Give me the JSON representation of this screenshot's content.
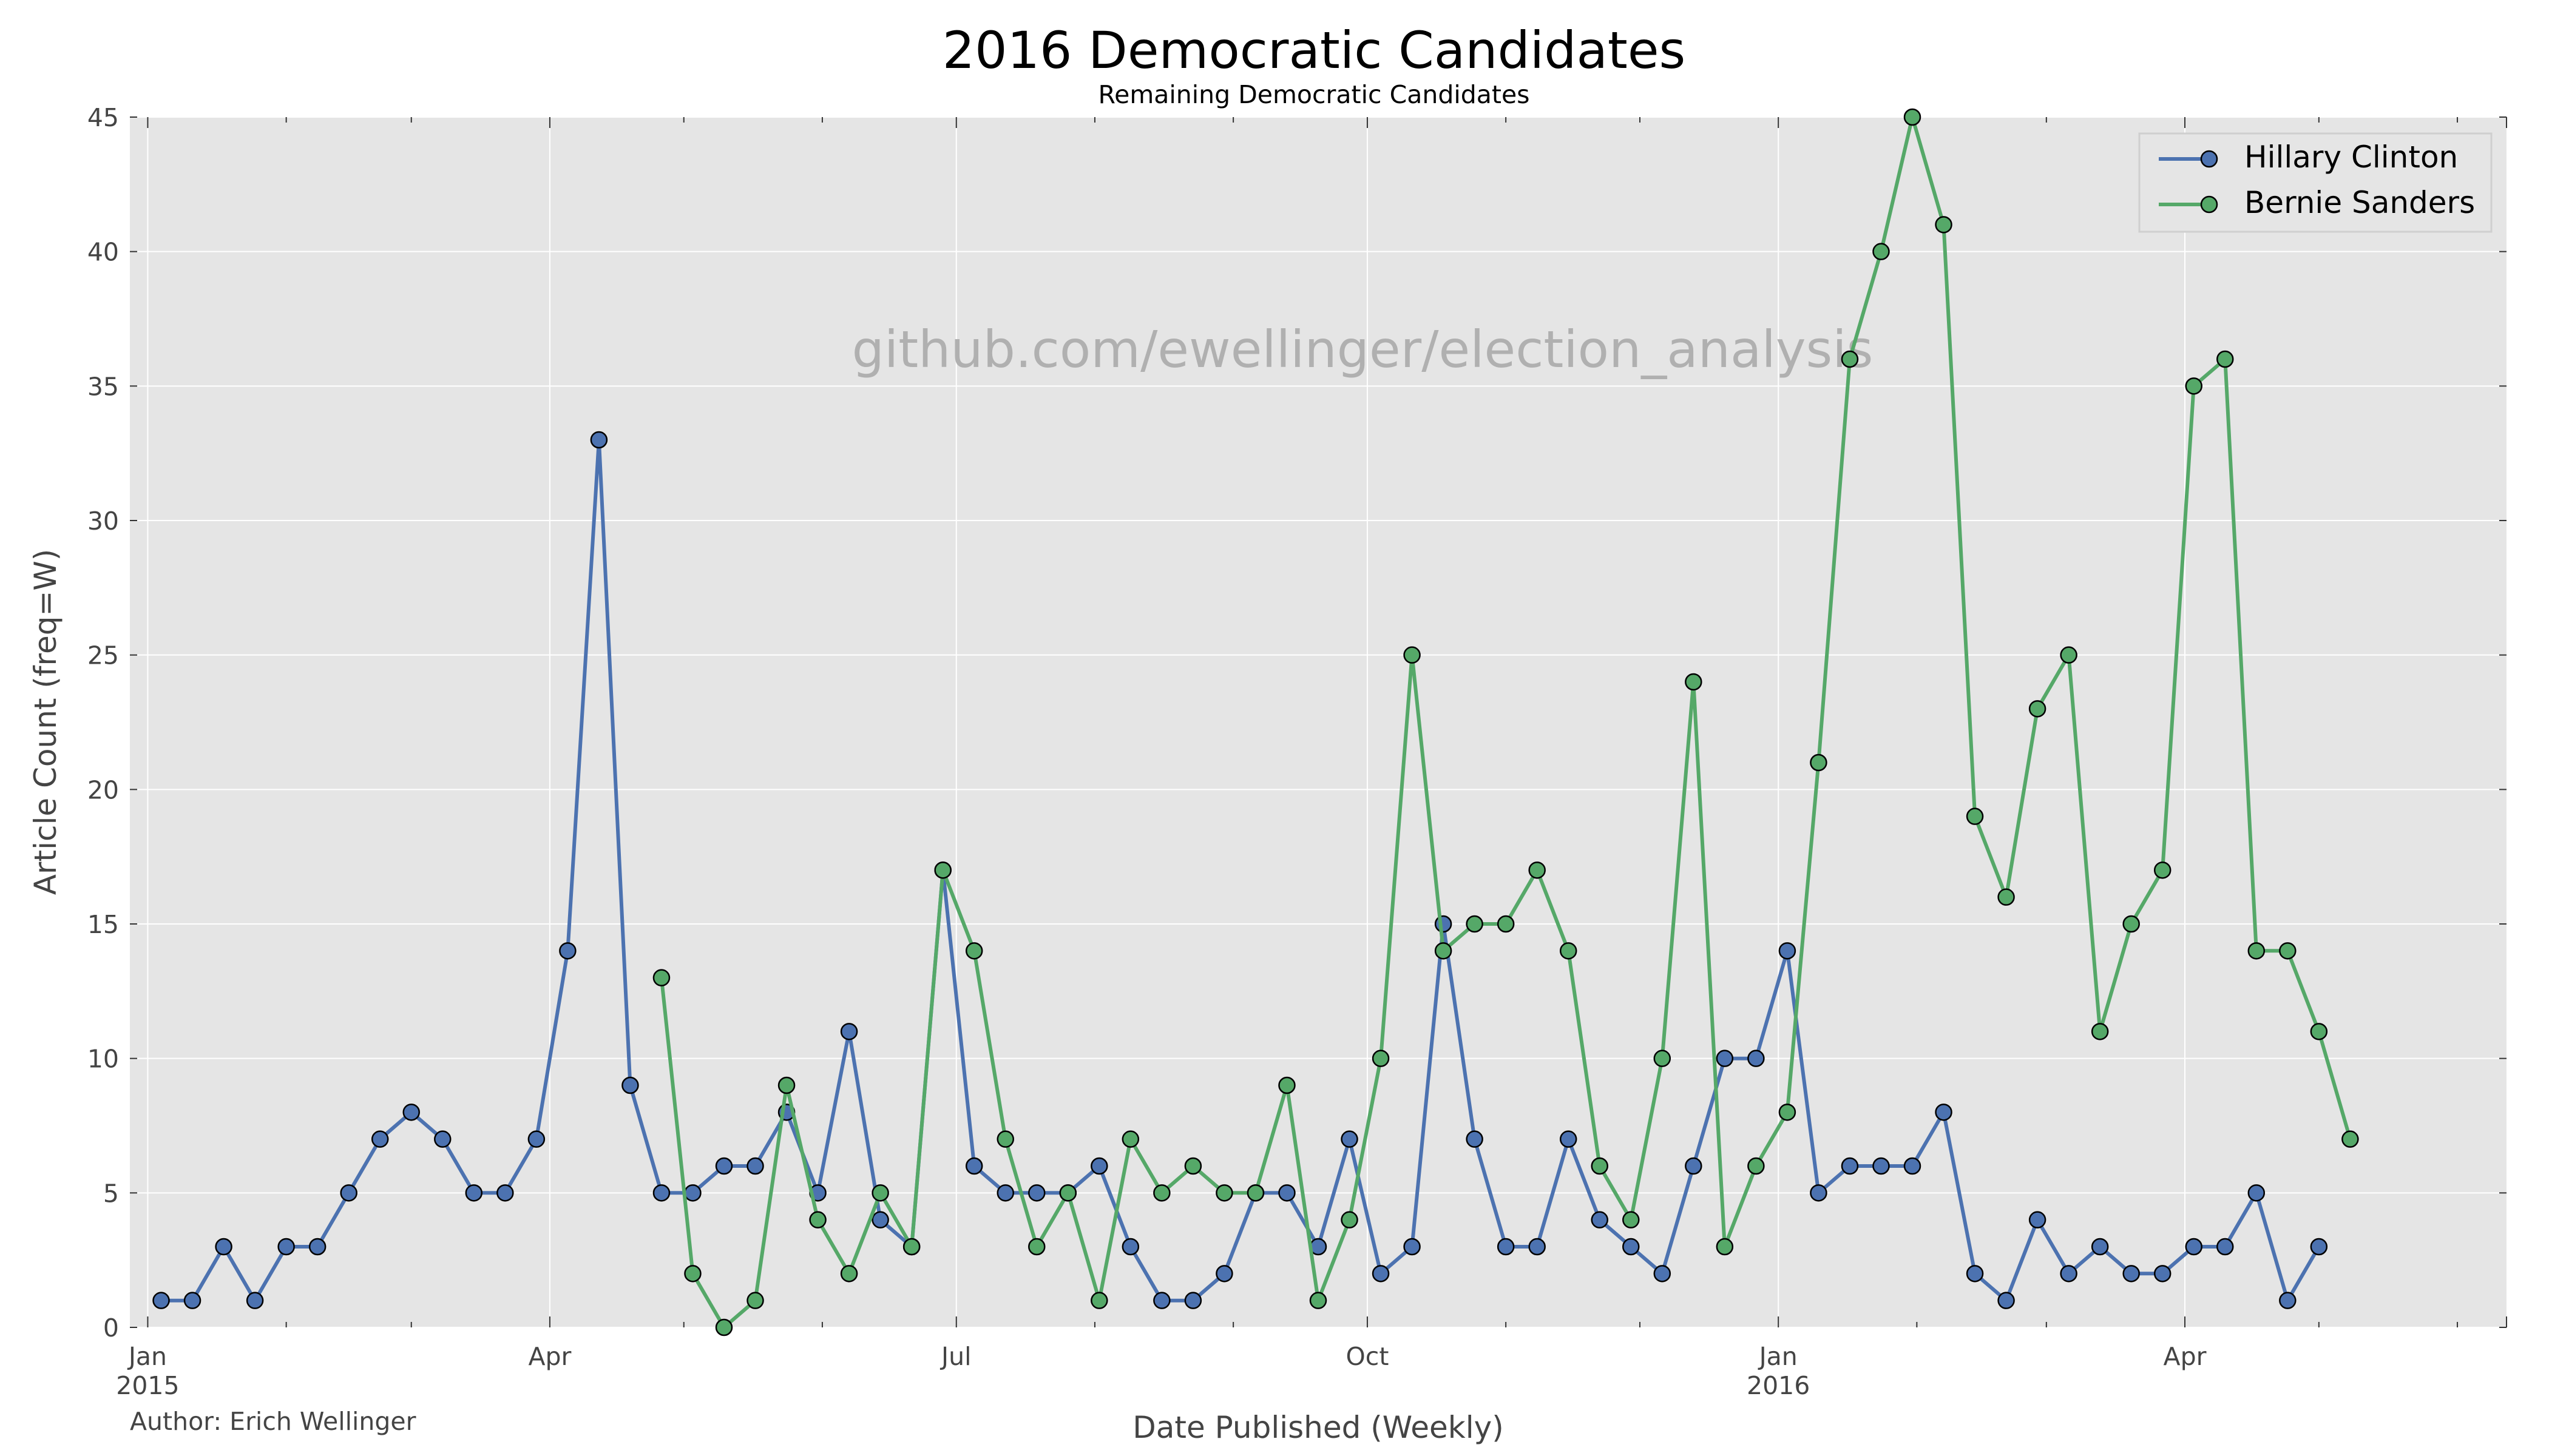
{
  "chart_data": {
    "type": "line",
    "title": "2016 Democratic Candidates",
    "subtitle": "Remaining Democratic Candidates",
    "xlabel": "Date Published (Weekly)",
    "ylabel": "Article Count (freq=W)",
    "watermark": "github.com/ewellinger/election_analysis",
    "author": "Author: Erich Wellinger",
    "x_range": [
      "2014-12-28",
      "2016-06-12"
    ],
    "ylim": [
      0,
      45
    ],
    "y_ticks": [
      0,
      5,
      10,
      15,
      20,
      25,
      30,
      35,
      40,
      45
    ],
    "x_ticks": [
      {
        "date": "2015-01-01",
        "label": "Jan",
        "sublabel": "2015"
      },
      {
        "date": "2015-04-01",
        "label": "Apr",
        "sublabel": ""
      },
      {
        "date": "2015-07-01",
        "label": "Jul",
        "sublabel": ""
      },
      {
        "date": "2015-10-01",
        "label": "Oct",
        "sublabel": ""
      },
      {
        "date": "2016-01-01",
        "label": "Jan",
        "sublabel": "2016"
      },
      {
        "date": "2016-04-01",
        "label": "Apr",
        "sublabel": ""
      }
    ],
    "minor_ticks": [
      "2015-02-01",
      "2015-03-01",
      "2015-05-01",
      "2015-06-01",
      "2015-08-01",
      "2015-09-01",
      "2015-11-01",
      "2015-12-01",
      "2016-02-01",
      "2016-03-01",
      "2016-05-01",
      "2016-06-01"
    ],
    "grid": true,
    "legend_position": "top-right",
    "background_color": "#E5E5E5",
    "grid_color": "#FFFFFF",
    "series": [
      {
        "name": "Hillary Clinton",
        "color": "#4C72B0",
        "points": [
          [
            "2015-01-04",
            1
          ],
          [
            "2015-01-11",
            1
          ],
          [
            "2015-01-18",
            3
          ],
          [
            "2015-01-25",
            1
          ],
          [
            "2015-02-01",
            3
          ],
          [
            "2015-02-08",
            3
          ],
          [
            "2015-02-15",
            5
          ],
          [
            "2015-02-22",
            7
          ],
          [
            "2015-03-01",
            8
          ],
          [
            "2015-03-08",
            7
          ],
          [
            "2015-03-15",
            5
          ],
          [
            "2015-03-22",
            5
          ],
          [
            "2015-03-29",
            7
          ],
          [
            "2015-04-05",
            14
          ],
          [
            "2015-04-12",
            33
          ],
          [
            "2015-04-19",
            9
          ],
          [
            "2015-04-26",
            5
          ],
          [
            "2015-05-03",
            5
          ],
          [
            "2015-05-10",
            6
          ],
          [
            "2015-05-17",
            6
          ],
          [
            "2015-05-24",
            8
          ],
          [
            "2015-05-31",
            5
          ],
          [
            "2015-06-07",
            11
          ],
          [
            "2015-06-14",
            4
          ],
          [
            "2015-06-21",
            3
          ],
          [
            "2015-06-28",
            17
          ],
          [
            "2015-07-05",
            6
          ],
          [
            "2015-07-12",
            5
          ],
          [
            "2015-07-19",
            5
          ],
          [
            "2015-07-26",
            5
          ],
          [
            "2015-08-02",
            6
          ],
          [
            "2015-08-09",
            3
          ],
          [
            "2015-08-16",
            1
          ],
          [
            "2015-08-23",
            1
          ],
          [
            "2015-08-30",
            2
          ],
          [
            "2015-09-06",
            5
          ],
          [
            "2015-09-13",
            5
          ],
          [
            "2015-09-20",
            3
          ],
          [
            "2015-09-27",
            7
          ],
          [
            "2015-10-04",
            2
          ],
          [
            "2015-10-11",
            3
          ],
          [
            "2015-10-18",
            15
          ],
          [
            "2015-10-25",
            7
          ],
          [
            "2015-11-01",
            3
          ],
          [
            "2015-11-08",
            3
          ],
          [
            "2015-11-15",
            7
          ],
          [
            "2015-11-22",
            4
          ],
          [
            "2015-11-29",
            3
          ],
          [
            "2015-12-06",
            2
          ],
          [
            "2015-12-13",
            6
          ],
          [
            "2015-12-20",
            10
          ],
          [
            "2015-12-27",
            10
          ],
          [
            "2016-01-03",
            14
          ],
          [
            "2016-01-10",
            5
          ],
          [
            "2016-01-17",
            6
          ],
          [
            "2016-01-24",
            6
          ],
          [
            "2016-01-31",
            6
          ],
          [
            "2016-02-07",
            8
          ],
          [
            "2016-02-14",
            2
          ],
          [
            "2016-02-21",
            1
          ],
          [
            "2016-02-28",
            4
          ],
          [
            "2016-03-06",
            2
          ],
          [
            "2016-03-13",
            3
          ],
          [
            "2016-03-20",
            2
          ],
          [
            "2016-03-27",
            2
          ],
          [
            "2016-04-03",
            3
          ],
          [
            "2016-04-10",
            3
          ],
          [
            "2016-04-17",
            5
          ],
          [
            "2016-04-24",
            1
          ],
          [
            "2016-05-01",
            3
          ]
        ]
      },
      {
        "name": "Bernie Sanders",
        "color": "#55A868",
        "points": [
          [
            "2015-04-26",
            13
          ],
          [
            "2015-05-03",
            2
          ],
          [
            "2015-05-10",
            0
          ],
          [
            "2015-05-17",
            1
          ],
          [
            "2015-05-24",
            9
          ],
          [
            "2015-05-31",
            4
          ],
          [
            "2015-06-07",
            2
          ],
          [
            "2015-06-14",
            5
          ],
          [
            "2015-06-21",
            3
          ],
          [
            "2015-06-28",
            17
          ],
          [
            "2015-07-05",
            14
          ],
          [
            "2015-07-12",
            7
          ],
          [
            "2015-07-19",
            3
          ],
          [
            "2015-07-26",
            5
          ],
          [
            "2015-08-02",
            1
          ],
          [
            "2015-08-09",
            7
          ],
          [
            "2015-08-16",
            5
          ],
          [
            "2015-08-23",
            6
          ],
          [
            "2015-08-30",
            5
          ],
          [
            "2015-09-06",
            5
          ],
          [
            "2015-09-13",
            9
          ],
          [
            "2015-09-20",
            1
          ],
          [
            "2015-09-27",
            4
          ],
          [
            "2015-10-04",
            10
          ],
          [
            "2015-10-11",
            25
          ],
          [
            "2015-10-18",
            14
          ],
          [
            "2015-10-25",
            15
          ],
          [
            "2015-11-01",
            15
          ],
          [
            "2015-11-08",
            17
          ],
          [
            "2015-11-15",
            14
          ],
          [
            "2015-11-22",
            6
          ],
          [
            "2015-11-29",
            4
          ],
          [
            "2015-12-06",
            10
          ],
          [
            "2015-12-13",
            24
          ],
          [
            "2015-12-20",
            3
          ],
          [
            "2015-12-27",
            6
          ],
          [
            "2016-01-03",
            8
          ],
          [
            "2016-01-10",
            21
          ],
          [
            "2016-01-17",
            36
          ],
          [
            "2016-01-24",
            40
          ],
          [
            "2016-01-31",
            45
          ],
          [
            "2016-02-07",
            41
          ],
          [
            "2016-02-14",
            19
          ],
          [
            "2016-02-21",
            16
          ],
          [
            "2016-02-28",
            23
          ],
          [
            "2016-03-06",
            25
          ],
          [
            "2016-03-13",
            11
          ],
          [
            "2016-03-20",
            15
          ],
          [
            "2016-03-27",
            17
          ],
          [
            "2016-04-03",
            35
          ],
          [
            "2016-04-10",
            36
          ],
          [
            "2016-04-17",
            14
          ],
          [
            "2016-04-24",
            14
          ],
          [
            "2016-05-01",
            11
          ],
          [
            "2016-05-08",
            7
          ]
        ]
      }
    ]
  }
}
